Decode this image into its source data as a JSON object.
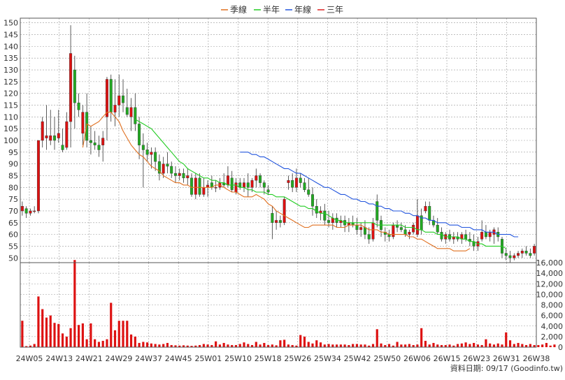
{
  "legend": [
    {
      "label": "季線",
      "color": "#e07020"
    },
    {
      "label": "半年",
      "color": "#22cc22"
    },
    {
      "label": "年線",
      "color": "#2255dd"
    },
    {
      "label": "三年",
      "color": "#dd2222"
    }
  ],
  "footer_note": "資料日期: 09/17  (Goodinfo.tw)",
  "colors": {
    "up_candle": "#dd1111",
    "down_candle": "#22aa22",
    "volume_bar": "#dd1111",
    "grid": "#999999"
  },
  "chart_data": [
    {
      "type": "candlestick",
      "ylim": [
        48,
        152
      ],
      "y_ticks": [
        50,
        55,
        60,
        65,
        70,
        75,
        80,
        85,
        90,
        95,
        100,
        105,
        110,
        115,
        120,
        125,
        130,
        135,
        140,
        145,
        150
      ],
      "x_tick_labels": [
        "24W05",
        "24W13",
        "24W21",
        "24W29",
        "24W37",
        "24W45",
        "25W01",
        "25W10",
        "25W18",
        "25W26",
        "25W34",
        "25W42",
        "25W50",
        "26W06",
        "26W15",
        "26W23",
        "26W31",
        "26W38"
      ],
      "grid": true,
      "legend_position": "top-center",
      "ohlc": [
        [
          70,
          74,
          68,
          72
        ],
        [
          71,
          72,
          67,
          69
        ],
        [
          69,
          71,
          68,
          70
        ],
        [
          70,
          72,
          69,
          70
        ],
        [
          70,
          100,
          69,
          100
        ],
        [
          100,
          110,
          97,
          108
        ],
        [
          101,
          115,
          96,
          102
        ],
        [
          100,
          113,
          98,
          102
        ],
        [
          102,
          110,
          96,
          100
        ],
        [
          101,
          113,
          99,
          103
        ],
        [
          98,
          105,
          95,
          96
        ],
        [
          97,
          112,
          96,
          108
        ],
        [
          108,
          149,
          97,
          137
        ],
        [
          130,
          136,
          105,
          116
        ],
        [
          116,
          120,
          110,
          113
        ],
        [
          103,
          115,
          98,
          112
        ],
        [
          112,
          120,
          97,
          100
        ],
        [
          100,
          106,
          94,
          99
        ],
        [
          99,
          104,
          96,
          98
        ],
        [
          98,
          102,
          93,
          96
        ],
        [
          98,
          104,
          91,
          101
        ],
        [
          110,
          127,
          100,
          126
        ],
        [
          126,
          128,
          108,
          112
        ],
        [
          112,
          126,
          106,
          115
        ],
        [
          115,
          128,
          110,
          119
        ],
        [
          119,
          126,
          112,
          116
        ],
        [
          114,
          122,
          110,
          111
        ],
        [
          110,
          118,
          104,
          114
        ],
        [
          114,
          120,
          104,
          107
        ],
        [
          107,
          110,
          92,
          98
        ],
        [
          98,
          103,
          80,
          96
        ],
        [
          96,
          99,
          91,
          94
        ],
        [
          94,
          97,
          88,
          95
        ],
        [
          95,
          97,
          87,
          91
        ],
        [
          91,
          94,
          83,
          86
        ],
        [
          86,
          93,
          84,
          90
        ],
        [
          90,
          95,
          86,
          89
        ],
        [
          89,
          91,
          84,
          86
        ],
        [
          86,
          89,
          82,
          85
        ],
        [
          85,
          88,
          83,
          86
        ],
        [
          86,
          88,
          82,
          84
        ],
        [
          84,
          88,
          81,
          85
        ],
        [
          84,
          86,
          76,
          77
        ],
        [
          77,
          86,
          75,
          84
        ],
        [
          84,
          86,
          76,
          77
        ],
        [
          77,
          84,
          76,
          80
        ],
        [
          80,
          83,
          76,
          81
        ],
        [
          82,
          85,
          79,
          80
        ],
        [
          80,
          83,
          78,
          80
        ],
        [
          80,
          84,
          79,
          82
        ],
        [
          82,
          86,
          80,
          81
        ],
        [
          81,
          89,
          80,
          85
        ],
        [
          84,
          87,
          78,
          79
        ],
        [
          78,
          84,
          77,
          82
        ],
        [
          82,
          84,
          79,
          80
        ],
        [
          80,
          84,
          78,
          82
        ],
        [
          82,
          86,
          76,
          80
        ],
        [
          80,
          84,
          78,
          83
        ],
        [
          83,
          88,
          80,
          85
        ],
        [
          85,
          86,
          80,
          82
        ],
        [
          82,
          83,
          77,
          80
        ],
        [
          79,
          81,
          77,
          78
        ],
        [
          69,
          72,
          58,
          65
        ],
        [
          65,
          70,
          62,
          66
        ],
        [
          66,
          68,
          63,
          65
        ],
        [
          65,
          76,
          64,
          75
        ],
        [
          82,
          85,
          79,
          83
        ],
        [
          83,
          86,
          78,
          80
        ],
        [
          80,
          88,
          78,
          84
        ],
        [
          84,
          86,
          80,
          82
        ],
        [
          82,
          84,
          78,
          79
        ],
        [
          79,
          84,
          76,
          77
        ],
        [
          77,
          80,
          68,
          72
        ],
        [
          72,
          75,
          67,
          69
        ],
        [
          69,
          72,
          66,
          70
        ],
        [
          70,
          73,
          64,
          66
        ],
        [
          66,
          70,
          63,
          65
        ],
        [
          65,
          69,
          62,
          67
        ],
        [
          67,
          69,
          63,
          65
        ],
        [
          65,
          68,
          63,
          66
        ],
        [
          66,
          68,
          61,
          64
        ],
        [
          64,
          67,
          61,
          65
        ],
        [
          65,
          68,
          63,
          64
        ],
        [
          64,
          67,
          60,
          62
        ],
        [
          62,
          65,
          59,
          63
        ],
        [
          63,
          66,
          58,
          60
        ],
        [
          60,
          63,
          56,
          58
        ],
        [
          58,
          67,
          57,
          65
        ],
        [
          74,
          77,
          63,
          66
        ],
        [
          66,
          68,
          59,
          62
        ],
        [
          61,
          63,
          57,
          60
        ],
        [
          60,
          62,
          57,
          59
        ],
        [
          59,
          65,
          58,
          64
        ],
        [
          64,
          66,
          61,
          63
        ],
        [
          63,
          65,
          61,
          62
        ],
        [
          62,
          64,
          59,
          60
        ],
        [
          60,
          62,
          58,
          61
        ],
        [
          61,
          65,
          60,
          64
        ],
        [
          60,
          75,
          59,
          68
        ],
        [
          68,
          71,
          60,
          62
        ],
        [
          70,
          74,
          69,
          72
        ],
        [
          72,
          74,
          64,
          66
        ],
        [
          66,
          68,
          63,
          64
        ],
        [
          64,
          67,
          60,
          61
        ],
        [
          61,
          63,
          57,
          58
        ],
        [
          58,
          61,
          56,
          60
        ],
        [
          60,
          62,
          57,
          58
        ],
        [
          58,
          61,
          56,
          59
        ],
        [
          59,
          61,
          57,
          58
        ],
        [
          58,
          61,
          56,
          60
        ],
        [
          60,
          62,
          57,
          58
        ],
        [
          58,
          61,
          55,
          57
        ],
        [
          57,
          60,
          53,
          55
        ],
        [
          55,
          59,
          53,
          57
        ],
        [
          58,
          66,
          57,
          61
        ],
        [
          61,
          64,
          58,
          59
        ],
        [
          59,
          62,
          57,
          61
        ],
        [
          60,
          63,
          56,
          62
        ],
        [
          61,
          63,
          57,
          59
        ],
        [
          58,
          59,
          50,
          52
        ],
        [
          52,
          54,
          49,
          51
        ],
        [
          51,
          53,
          48,
          50
        ],
        [
          50,
          52,
          49,
          51
        ],
        [
          51,
          53,
          50,
          52
        ],
        [
          52,
          54,
          50,
          53
        ],
        [
          53,
          55,
          51,
          52
        ],
        [
          52,
          54,
          50,
          51
        ],
        [
          52,
          56,
          51,
          55
        ]
      ],
      "series": [
        {
          "name": "季線",
          "color": "#e07020",
          "start_index": 15,
          "values": [
            97,
            107,
            106,
            107,
            108,
            110,
            112,
            112,
            110,
            108,
            104,
            101,
            98,
            96,
            94,
            93,
            91,
            89,
            88,
            87,
            85,
            84,
            83,
            82,
            82,
            81,
            81,
            80,
            80,
            80,
            80,
            80,
            80,
            81,
            81,
            80,
            79,
            78,
            78,
            77,
            76,
            76,
            76,
            77,
            76,
            75,
            73,
            72,
            70,
            69,
            68,
            67,
            66,
            65,
            64,
            63,
            63,
            64,
            64,
            64,
            64,
            64,
            64,
            63,
            63,
            63,
            64,
            64,
            64,
            64,
            63,
            62,
            62,
            62,
            61,
            61,
            60,
            60,
            60,
            60,
            60,
            59,
            59,
            58,
            58,
            57,
            56,
            55,
            54,
            54,
            54,
            54,
            53,
            53,
            53,
            53,
            54
          ]
        },
        {
          "name": "半年",
          "color": "#22cc22",
          "start_index": 28,
          "values": [
            109,
            108,
            107,
            106,
            105,
            103,
            101,
            99,
            97,
            95,
            93,
            91,
            90,
            88,
            87,
            86,
            85,
            84,
            84,
            83,
            83,
            82,
            82,
            81,
            81,
            81,
            80,
            80,
            79,
            79,
            78,
            78,
            78,
            77,
            77,
            76,
            76,
            76,
            75,
            74,
            73,
            72,
            72,
            71,
            71,
            70,
            69,
            69,
            68,
            67,
            66,
            66,
            65,
            65,
            65,
            65,
            65,
            65,
            65,
            65,
            64,
            64,
            64,
            64,
            64,
            64,
            64,
            63,
            63,
            63,
            62,
            62,
            61,
            61,
            61,
            60,
            60,
            59,
            59,
            59,
            59,
            58,
            58,
            57,
            57,
            56,
            56,
            55,
            55,
            55,
            55,
            55,
            54
          ]
        },
        {
          "name": "年線",
          "color": "#2255dd",
          "start_index": 54,
          "values": [
            95,
            95,
            95,
            94,
            94,
            93,
            93,
            92,
            91,
            90,
            89,
            88,
            88,
            87,
            86,
            86,
            85,
            84,
            83,
            82,
            81,
            80,
            80,
            79,
            78,
            77,
            77,
            76,
            75,
            75,
            74,
            74,
            73,
            73,
            72,
            72,
            71,
            71,
            70,
            70,
            70,
            69,
            69,
            68,
            68,
            67,
            67,
            66,
            66,
            65,
            65,
            65,
            64,
            64,
            64,
            63,
            63,
            63,
            62,
            62,
            62,
            61,
            61,
            61,
            60,
            60,
            60,
            60,
            59,
            59
          ]
        },
        {
          "name": "三年",
          "color": "#dd2222",
          "start_index": 0,
          "values": []
        }
      ]
    },
    {
      "type": "bar",
      "ylim": [
        0,
        16000
      ],
      "y_ticks": [
        0,
        2000,
        4000,
        6000,
        8000,
        10000,
        12000,
        14000,
        16000
      ],
      "y_tick_labels": [
        "0",
        "2,000",
        "4,000",
        "6,000",
        "8,000",
        "10,000",
        "12,000",
        "14,000",
        "16,000"
      ],
      "values": [
        5000,
        200,
        300,
        600,
        9600,
        7200,
        5600,
        6000,
        4600,
        4400,
        2600,
        2000,
        3600,
        16500,
        4200,
        4500,
        1500,
        4500,
        1500,
        1000,
        1200,
        1500,
        8400,
        3200,
        5000,
        5000,
        5000,
        2400,
        2000,
        800,
        1000,
        900,
        700,
        600,
        500,
        600,
        800,
        400,
        350,
        300,
        350,
        300,
        250,
        300,
        400,
        600,
        500,
        400,
        1100,
        500,
        800,
        500,
        400,
        400,
        600,
        900,
        600,
        400,
        1000,
        500,
        800,
        400,
        500,
        350,
        1300,
        1400,
        500,
        400,
        300,
        2300,
        2000,
        1000,
        700,
        1300,
        900,
        500,
        600,
        500,
        500,
        500,
        500,
        400,
        600,
        600,
        500,
        500,
        300,
        600,
        3400,
        700,
        400,
        600,
        300,
        1000,
        500,
        500,
        600,
        400,
        500,
        3600,
        1200,
        500,
        800,
        500,
        400,
        400,
        500,
        300,
        600,
        700,
        900,
        600,
        800,
        500,
        400,
        1500,
        700,
        500,
        700,
        500,
        2800,
        1300,
        600,
        800,
        600,
        400,
        600,
        400,
        400,
        500,
        800,
        300,
        500
      ]
    }
  ]
}
